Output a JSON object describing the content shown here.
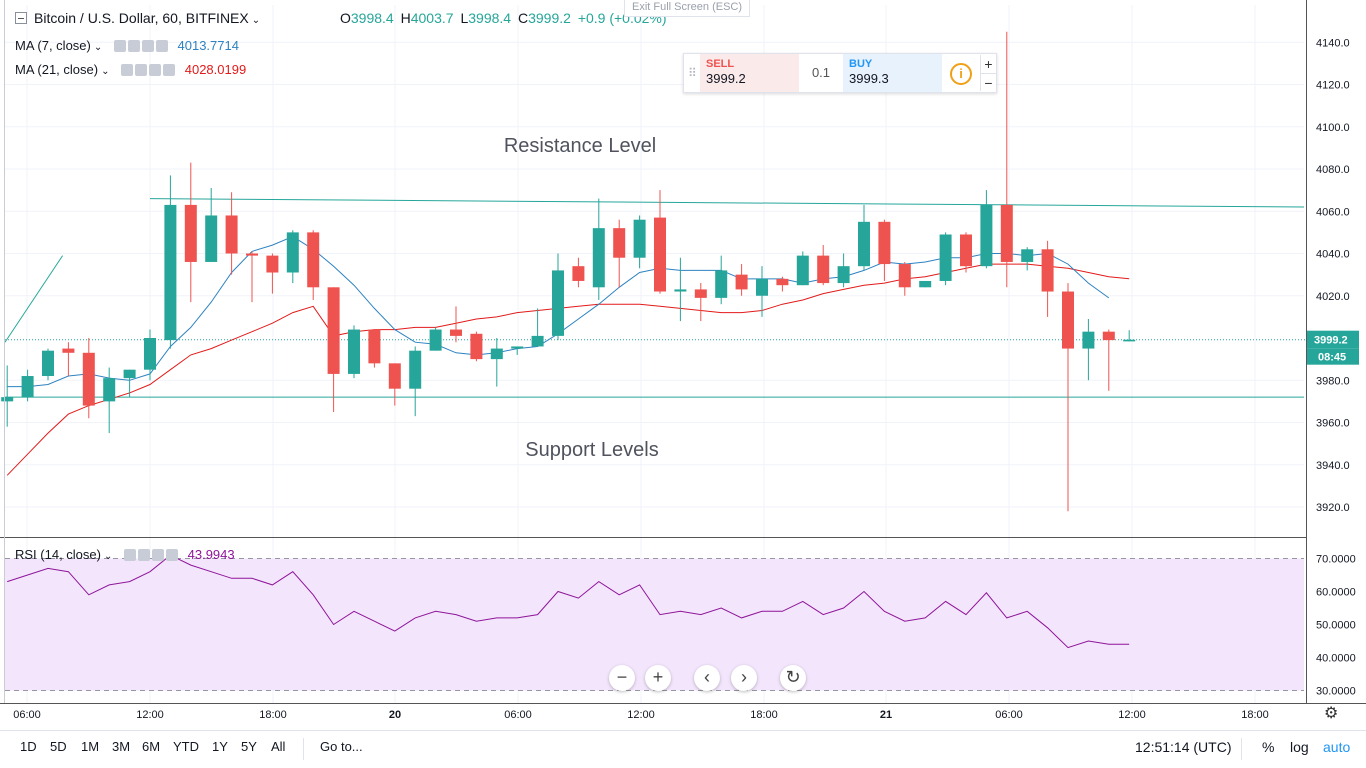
{
  "header": {
    "symbol": "Bitcoin / U.S. Dollar, 60, BITFINEX",
    "o_label": "O",
    "o_value": "3998.4",
    "h_label": "H",
    "h_value": "4003.7",
    "l_label": "L",
    "l_value": "3998.4",
    "c_label": "C",
    "c_value": "3999.2",
    "change": "+0.9 (+0.02%)",
    "exit_fullscreen": "Exit Full Screen (ESC)"
  },
  "indicators": [
    {
      "label": "MA (7, close)",
      "value": "4013.7714",
      "color": "#2e82c1"
    },
    {
      "label": "MA (21, close)",
      "value": "4028.0199",
      "color": "#e21a1a"
    }
  ],
  "rsi": {
    "label": "RSI (14, close)",
    "value": "43.9943",
    "color": "#8e1599"
  },
  "trade_widget": {
    "sell_label": "SELL",
    "sell_price": "3999.2",
    "quantity": "0.1",
    "buy_label": "BUY",
    "buy_price": "3999.3",
    "info_icon": "i",
    "plus": "+",
    "minus": "−"
  },
  "chart_data": {
    "type": "candlestick",
    "ylim": [
      3900,
      4150
    ],
    "y_ticks": [
      "4140.0",
      "4120.0",
      "4100.0",
      "4080.0",
      "4060.0",
      "4040.0",
      "4020.0",
      "3980.0",
      "3960.0",
      "3940.0",
      "3920.0"
    ],
    "x_ticks": [
      "06:00",
      "12:00",
      "18:00",
      "20",
      "06:00",
      "12:00",
      "18:00",
      "21",
      "06:00",
      "12:00",
      "18:00"
    ],
    "current_price": "3999.2",
    "countdown": "08:45",
    "candles": [
      {
        "o": 3970,
        "h": 3987,
        "l": 3958,
        "c": 3972
      },
      {
        "o": 3972,
        "h": 3985,
        "l": 3970,
        "c": 3982
      },
      {
        "o": 3982,
        "h": 3995,
        "l": 3980,
        "c": 3994
      },
      {
        "o": 3995,
        "h": 3998,
        "l": 3982,
        "c": 3993
      },
      {
        "o": 3993,
        "h": 4000,
        "l": 3962,
        "c": 3968
      },
      {
        "o": 3970,
        "h": 3986,
        "l": 3955,
        "c": 3981
      },
      {
        "o": 3981,
        "h": 3985,
        "l": 3972,
        "c": 3985
      },
      {
        "o": 3985,
        "h": 4004,
        "l": 3980,
        "c": 4000
      },
      {
        "o": 3999,
        "h": 4077,
        "l": 3995,
        "c": 4063
      },
      {
        "o": 4063,
        "h": 4083,
        "l": 4017,
        "c": 4036
      },
      {
        "o": 4036,
        "h": 4071,
        "l": 4036,
        "c": 4058
      },
      {
        "o": 4058,
        "h": 4069,
        "l": 4030,
        "c": 4040
      },
      {
        "o": 4040,
        "h": 4041,
        "l": 4017,
        "c": 4039
      },
      {
        "o": 4039,
        "h": 4040,
        "l": 4021,
        "c": 4031
      },
      {
        "o": 4031,
        "h": 4051,
        "l": 4026,
        "c": 4050
      },
      {
        "o": 4050,
        "h": 4051,
        "l": 4018,
        "c": 4024
      },
      {
        "o": 4024,
        "h": 4024,
        "l": 3965,
        "c": 3983
      },
      {
        "o": 3983,
        "h": 4006,
        "l": 3981,
        "c": 4004
      },
      {
        "o": 4004,
        "h": 4004,
        "l": 3986,
        "c": 3988
      },
      {
        "o": 3988,
        "h": 3988,
        "l": 3968,
        "c": 3976
      },
      {
        "o": 3976,
        "h": 3996,
        "l": 3963,
        "c": 3994
      },
      {
        "o": 3994,
        "h": 4005,
        "l": 3994,
        "c": 4004
      },
      {
        "o": 4004,
        "h": 4015,
        "l": 3998,
        "c": 4001
      },
      {
        "o": 4002,
        "h": 4003,
        "l": 3989,
        "c": 3990
      },
      {
        "o": 3990,
        "h": 4000,
        "l": 3977,
        "c": 3995
      },
      {
        "o": 3995,
        "h": 3996,
        "l": 3992,
        "c": 3996
      },
      {
        "o": 3996,
        "h": 4014,
        "l": 3996,
        "c": 4001
      },
      {
        "o": 4001,
        "h": 4040,
        "l": 3999,
        "c": 4032
      },
      {
        "o": 4034,
        "h": 4038,
        "l": 4024,
        "c": 4027
      },
      {
        "o": 4024,
        "h": 4066,
        "l": 4018,
        "c": 4052
      },
      {
        "o": 4052,
        "h": 4056,
        "l": 4024,
        "c": 4038
      },
      {
        "o": 4038,
        "h": 4058,
        "l": 4033,
        "c": 4056
      },
      {
        "o": 4057,
        "h": 4070,
        "l": 4021,
        "c": 4022
      },
      {
        "o": 4022,
        "h": 4038,
        "l": 4008,
        "c": 4023
      },
      {
        "o": 4023,
        "h": 4026,
        "l": 4008,
        "c": 4019
      },
      {
        "o": 4019,
        "h": 4039,
        "l": 4016,
        "c": 4032
      },
      {
        "o": 4030,
        "h": 4035,
        "l": 4020,
        "c": 4023
      },
      {
        "o": 4020,
        "h": 4034,
        "l": 4010,
        "c": 4028
      },
      {
        "o": 4028,
        "h": 4029,
        "l": 4022,
        "c": 4025
      },
      {
        "o": 4025,
        "h": 4041,
        "l": 4025,
        "c": 4039
      },
      {
        "o": 4039,
        "h": 4044,
        "l": 4025,
        "c": 4026
      },
      {
        "o": 4026,
        "h": 4040,
        "l": 4024,
        "c": 4034
      },
      {
        "o": 4034,
        "h": 4063,
        "l": 4032,
        "c": 4055
      },
      {
        "o": 4055,
        "h": 4056,
        "l": 4027,
        "c": 4035
      },
      {
        "o": 4035,
        "h": 4036,
        "l": 4020,
        "c": 4024
      },
      {
        "o": 4024,
        "h": 4027,
        "l": 4024,
        "c": 4027
      },
      {
        "o": 4027,
        "h": 4050,
        "l": 4025,
        "c": 4049
      },
      {
        "o": 4049,
        "h": 4050,
        "l": 4031,
        "c": 4034
      },
      {
        "o": 4034,
        "h": 4070,
        "l": 4033,
        "c": 4063
      },
      {
        "o": 4063,
        "h": 4145,
        "l": 4024,
        "c": 4036
      },
      {
        "o": 4036,
        "h": 4043,
        "l": 4032,
        "c": 4042
      },
      {
        "o": 4042,
        "h": 4046,
        "l": 4010,
        "c": 4022
      },
      {
        "o": 4022,
        "h": 4026,
        "l": 3918,
        "c": 3995
      },
      {
        "o": 3995,
        "h": 4009,
        "l": 3980,
        "c": 4003
      },
      {
        "o": 4003,
        "h": 4004,
        "l": 3975,
        "c": 3999
      },
      {
        "o": 3998.4,
        "h": 4003.7,
        "l": 3998.4,
        "c": 3999.2
      }
    ],
    "ma7": [
      3977,
      3977,
      3978,
      3982,
      3983,
      3981,
      3980,
      3983,
      3996,
      4005,
      4017,
      4031,
      4041,
      4044,
      4048,
      4042,
      4034,
      4025,
      4014,
      4004,
      3998,
      3997,
      3993,
      3992,
      3993,
      3995,
      3996,
      4002,
      4009,
      4016,
      4024,
      4031,
      4033,
      4032,
      4032,
      4032,
      4028,
      4028,
      4028,
      4026,
      4028,
      4029,
      4032,
      4036,
      4035,
      4036,
      4038,
      4038,
      4040,
      4040,
      4039,
      4040,
      4035,
      4026,
      4019,
      4013.7714
    ],
    "ma21": [
      3935,
      3945,
      3955,
      3964,
      3968,
      3971,
      3974,
      3978,
      3985,
      3992,
      3995,
      3999,
      4003,
      4007,
      4012,
      4015,
      4001,
      4003,
      4004,
      4004,
      4005,
      4005,
      4007,
      4009,
      4010,
      4012,
      4013,
      4014,
      4015,
      4016,
      4016,
      4016,
      4015,
      4014,
      4013,
      4012,
      4012,
      4013,
      4016,
      4018,
      4021,
      4023,
      4025,
      4026,
      4028,
      4029,
      4031,
      4033,
      4035,
      4035,
      4035,
      4034,
      4033,
      4031,
      4029,
      4028.0199
    ],
    "support_level": 3972,
    "resistance_line": [
      {
        "x": 7,
        "y": 4066
      },
      {
        "x": 64,
        "y": 4062
      }
    ],
    "trend_line": [
      {
        "x": -1,
        "y": 3998
      },
      {
        "x": 3.5,
        "y": 4039
      }
    ],
    "annotations": [
      "Resistance Level",
      "Support Levels"
    ],
    "rsi_ylim": [
      28,
      74
    ],
    "rsi_ticks": [
      "70.0000",
      "60.0000",
      "50.0000",
      "40.0000",
      "30.0000"
    ],
    "rsi_bands": [
      30,
      70
    ],
    "rsi_values": [
      63,
      65,
      67,
      66,
      59,
      62,
      63,
      66,
      71,
      68,
      66,
      64,
      64,
      62,
      66,
      59,
      50,
      54,
      51,
      48,
      52,
      54,
      53,
      51,
      52,
      52,
      53,
      60,
      58,
      63,
      59,
      62,
      53,
      54,
      53,
      55,
      52,
      54,
      54,
      57,
      53,
      55,
      60,
      54,
      51,
      52,
      57,
      53,
      59.6,
      52,
      54,
      49,
      43,
      45,
      44,
      43.9943
    ]
  },
  "nav_buttons": {
    "zoom_out": "−",
    "zoom_in": "+",
    "scroll_left": "‹",
    "scroll_right": "›",
    "reset": "↻"
  },
  "bottom_bar": {
    "timeframes": [
      "1D",
      "5D",
      "1M",
      "3M",
      "6M",
      "YTD",
      "1Y",
      "5Y",
      "All"
    ],
    "goto": "Go to...",
    "clock": "12:51:14 (UTC)",
    "percent": "%",
    "log": "log",
    "auto": "auto"
  },
  "colors": {
    "up": "#26a69a",
    "down": "#ef5350",
    "line_level": "#26a69a",
    "rsi_fill": "#f3e5fc"
  }
}
